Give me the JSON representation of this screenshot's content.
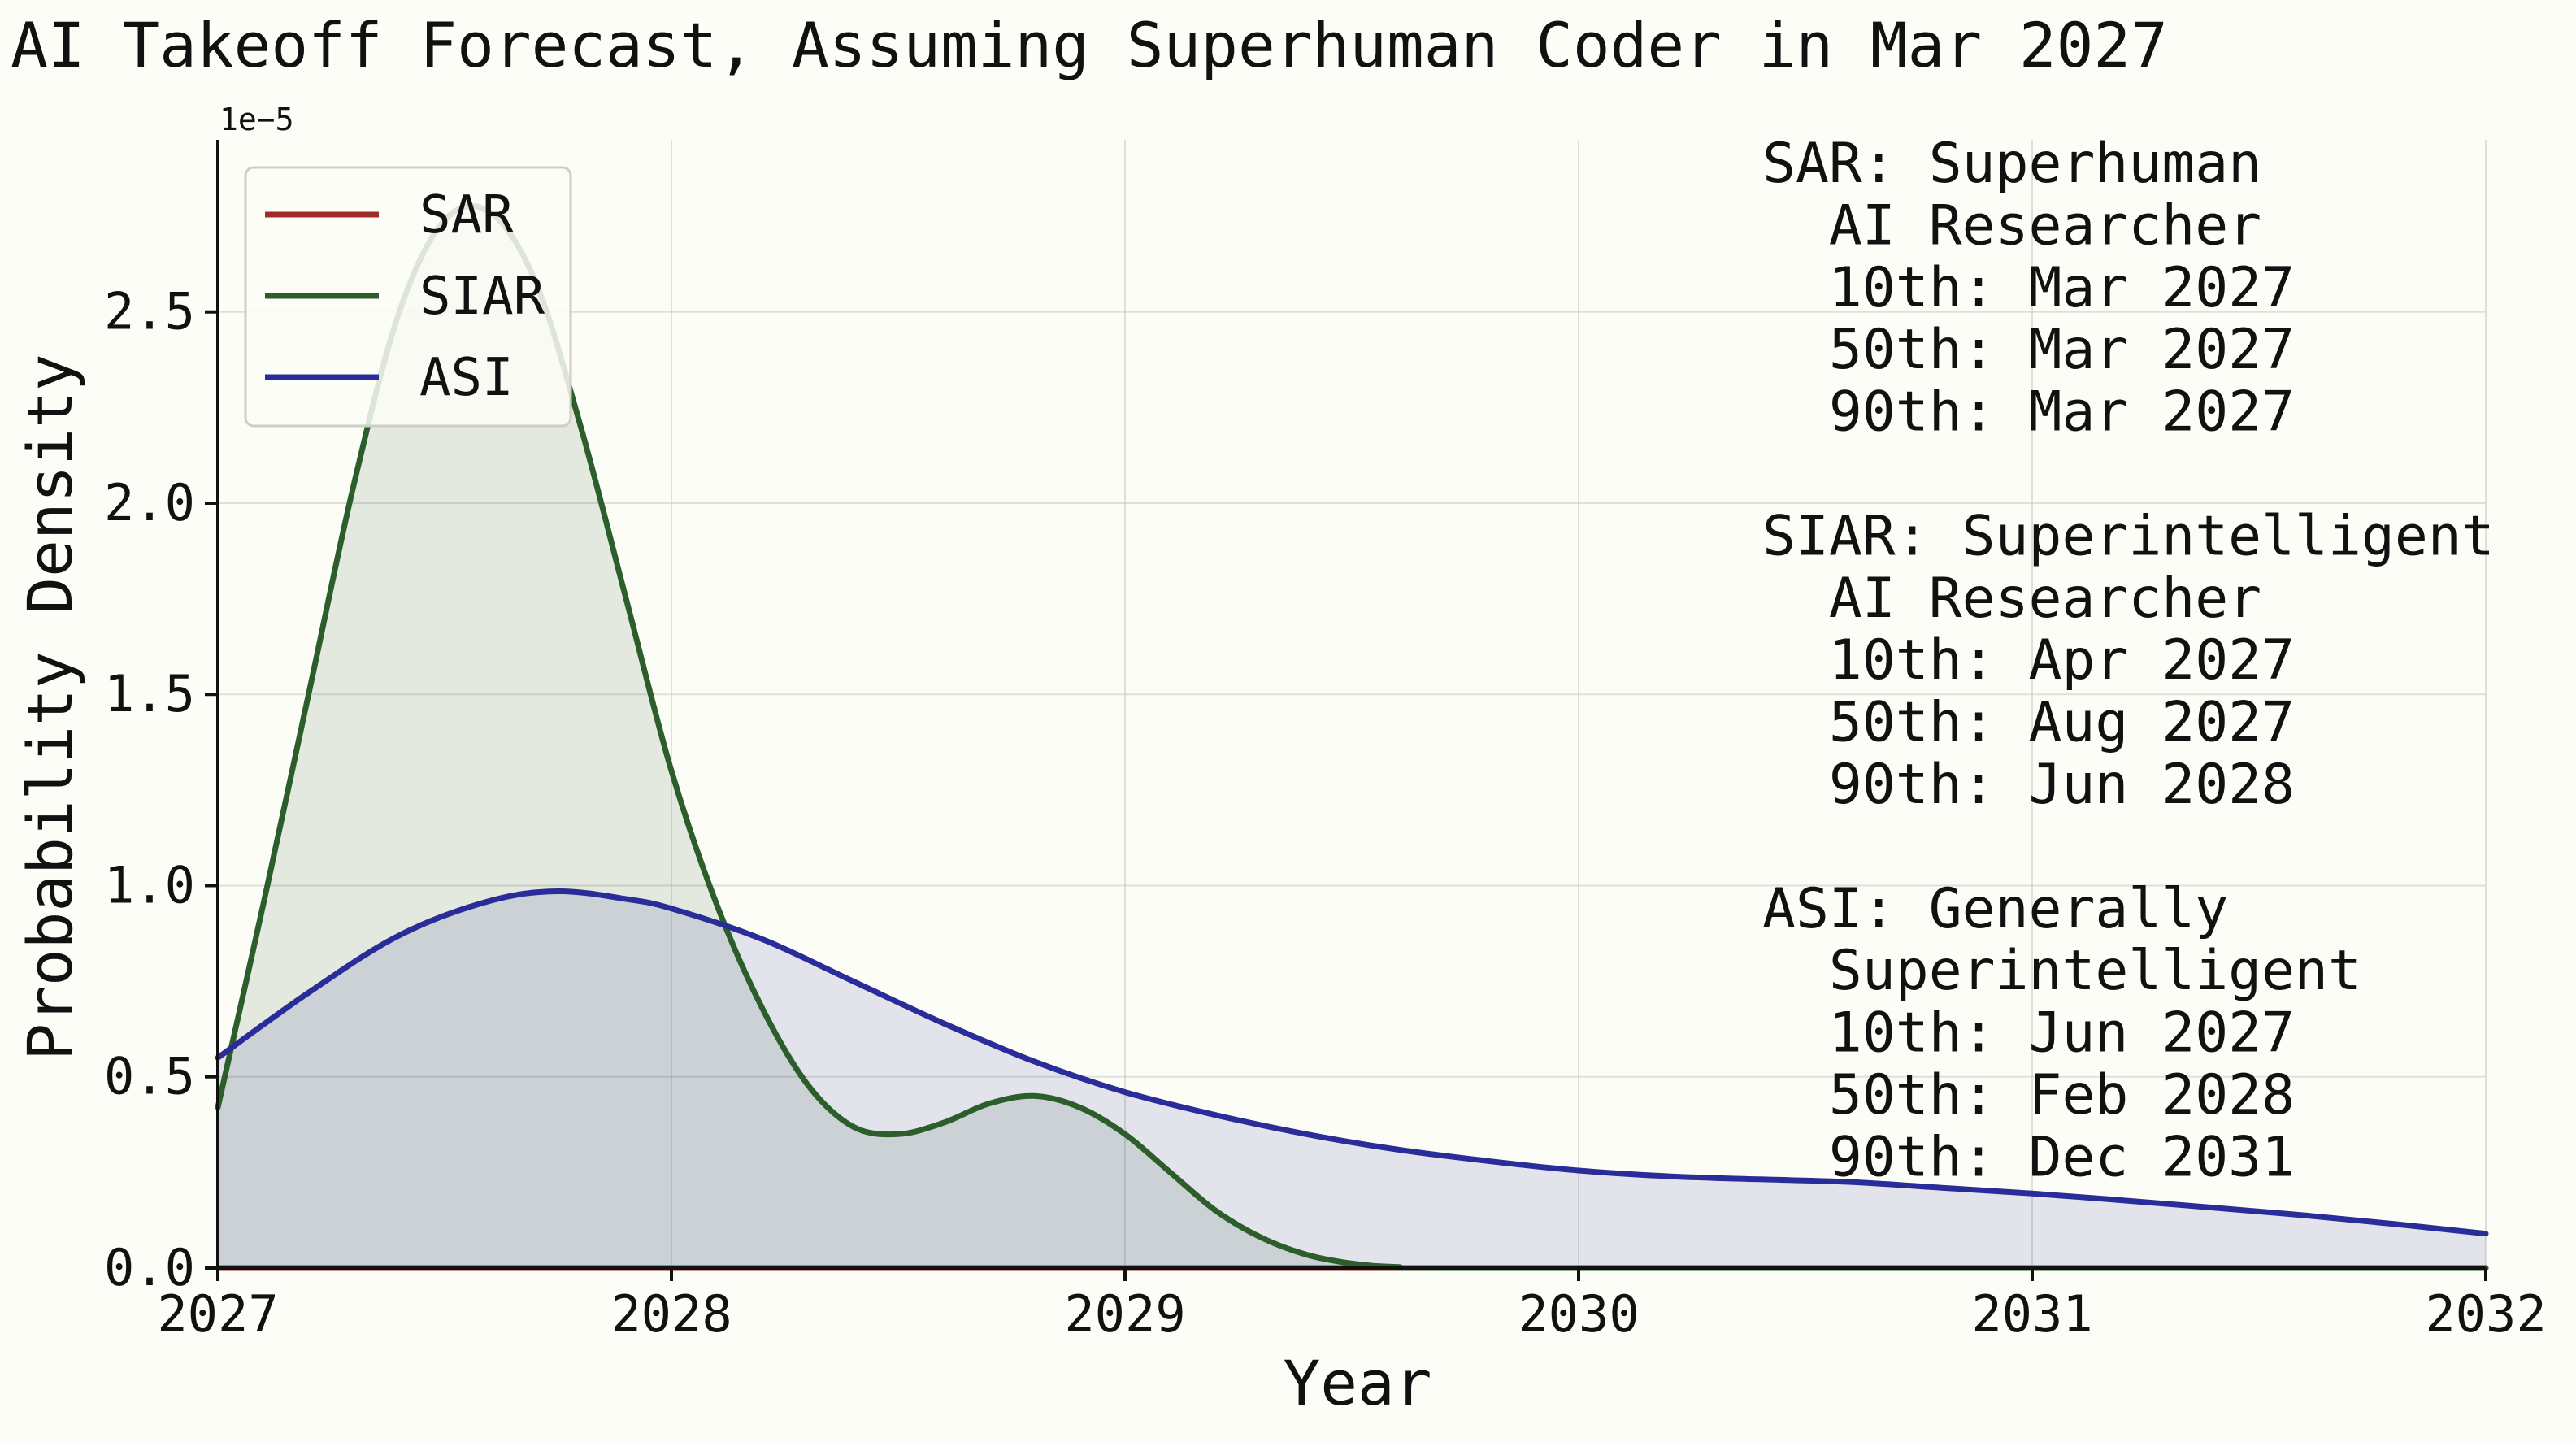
{
  "chart_data": {
    "type": "area",
    "title": "AI Takeoff Forecast, Assuming Superhuman Coder in Mar 2027",
    "xlabel": "Year",
    "ylabel": "Probability Density",
    "y_offset_label": "1e−5",
    "xlim": [
      2027,
      2032
    ],
    "ylim": [
      0,
      2.95
    ],
    "x_ticks": [
      2027,
      2028,
      2029,
      2030,
      2031,
      2032
    ],
    "x_tick_labels": [
      "2027",
      "2028",
      "2029",
      "2030",
      "2031",
      "2032"
    ],
    "y_ticks": [
      0.0,
      0.5,
      1.0,
      1.5,
      2.0,
      2.5
    ],
    "y_tick_labels": [
      "0.0",
      "0.5",
      "1.0",
      "1.5",
      "2.0",
      "2.5"
    ],
    "grid": true,
    "legend_position": "top-left",
    "series": [
      {
        "name": "SAR",
        "color": "#a02b2b",
        "fill": false,
        "points": [
          [
            2027.0,
            0.0
          ],
          [
            2032.0,
            0.0
          ]
        ]
      },
      {
        "name": "SIAR",
        "color": "#2c5e2c",
        "fill": true,
        "points": [
          [
            2027.0,
            0.42
          ],
          [
            2027.1,
            0.95
          ],
          [
            2027.2,
            1.5
          ],
          [
            2027.3,
            2.05
          ],
          [
            2027.4,
            2.5
          ],
          [
            2027.5,
            2.74
          ],
          [
            2027.6,
            2.76
          ],
          [
            2027.7,
            2.58
          ],
          [
            2027.8,
            2.2
          ],
          [
            2027.9,
            1.75
          ],
          [
            2028.0,
            1.3
          ],
          [
            2028.1,
            0.95
          ],
          [
            2028.2,
            0.68
          ],
          [
            2028.3,
            0.48
          ],
          [
            2028.4,
            0.37
          ],
          [
            2028.5,
            0.35
          ],
          [
            2028.6,
            0.38
          ],
          [
            2028.7,
            0.43
          ],
          [
            2028.8,
            0.45
          ],
          [
            2028.9,
            0.42
          ],
          [
            2029.0,
            0.35
          ],
          [
            2029.1,
            0.25
          ],
          [
            2029.2,
            0.15
          ],
          [
            2029.3,
            0.08
          ],
          [
            2029.4,
            0.035
          ],
          [
            2029.5,
            0.012
          ],
          [
            2029.6,
            0.003
          ],
          [
            2029.8,
            0.0
          ],
          [
            2032.0,
            0.0
          ]
        ]
      },
      {
        "name": "ASI",
        "color": "#2a2d99",
        "fill": true,
        "points": [
          [
            2027.0,
            0.55
          ],
          [
            2027.2,
            0.72
          ],
          [
            2027.4,
            0.87
          ],
          [
            2027.6,
            0.96
          ],
          [
            2027.75,
            0.985
          ],
          [
            2027.9,
            0.965
          ],
          [
            2028.0,
            0.94
          ],
          [
            2028.2,
            0.86
          ],
          [
            2028.4,
            0.75
          ],
          [
            2028.6,
            0.64
          ],
          [
            2028.8,
            0.54
          ],
          [
            2029.0,
            0.46
          ],
          [
            2029.2,
            0.4
          ],
          [
            2029.4,
            0.35
          ],
          [
            2029.6,
            0.31
          ],
          [
            2029.8,
            0.28
          ],
          [
            2030.0,
            0.255
          ],
          [
            2030.2,
            0.24
          ],
          [
            2030.4,
            0.232
          ],
          [
            2030.6,
            0.225
          ],
          [
            2030.8,
            0.21
          ],
          [
            2031.0,
            0.195
          ],
          [
            2031.2,
            0.177
          ],
          [
            2031.4,
            0.158
          ],
          [
            2031.6,
            0.138
          ],
          [
            2031.8,
            0.115
          ],
          [
            2032.0,
            0.09
          ]
        ]
      }
    ],
    "annotations": [
      {
        "header": "SAR: Superhuman",
        "lines": [
          "  AI Researcher",
          "  10th: Mar 2027",
          "  50th: Mar 2027",
          "  90th: Mar 2027"
        ]
      },
      {
        "header": "SIAR: Superintelligent",
        "lines": [
          "  AI Researcher",
          "  10th: Apr 2027",
          "  50th: Aug 2027",
          "  90th: Jun 2028"
        ]
      },
      {
        "header": "ASI: Generally",
        "lines": [
          "  Superintelligent",
          "  10th: Jun 2027",
          "  50th: Feb 2028",
          "  90th: Dec 2031"
        ]
      }
    ]
  }
}
